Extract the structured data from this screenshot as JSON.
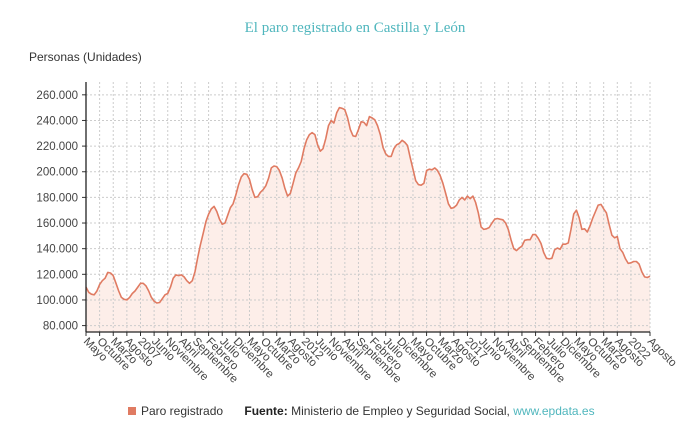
{
  "chart_data": {
    "type": "area",
    "title": "El paro registrado en Castilla y León",
    "ylabel": "Personas (Unidades)",
    "xlabel": "",
    "ylim": [
      75000,
      270000
    ],
    "y_ticks": [
      80000,
      100000,
      120000,
      140000,
      160000,
      180000,
      200000,
      220000,
      240000,
      260000
    ],
    "y_tick_labels": [
      "80.000",
      "100.000",
      "120.000",
      "140.000",
      "160.000",
      "180.000",
      "200.000",
      "220.000",
      "240.000",
      "260.000"
    ],
    "x_tick_labels": [
      "Mayo",
      "Octubre",
      "Marzo",
      "Agosto",
      "2007",
      "Junio",
      "Noviembre",
      "Abril",
      "Septiembre",
      "Febrero",
      "Julio",
      "Diciembre",
      "Mayo",
      "Octubre",
      "Marzo",
      "Agosto",
      "2012",
      "Junio",
      "Noviembre",
      "Abril",
      "Septiembre",
      "Febrero",
      "Julio",
      "Diciembre",
      "Mayo",
      "Octubre",
      "Marzo",
      "Agosto",
      "2017",
      "Junio",
      "Noviembre",
      "Abril",
      "Septiembre",
      "Febrero",
      "Julio",
      "Diciembre",
      "Mayo",
      "Octubre",
      "Marzo",
      "Agosto",
      "2022",
      "Agosto"
    ],
    "grid": true,
    "legend_position": "bottom",
    "series": [
      {
        "name": "Paro registrado",
        "color": "#e07b62",
        "fill": "#fdeee9",
        "values": [
          110000,
          106000,
          104500,
          104000,
          107000,
          112000,
          115000,
          117000,
          121500,
          121000,
          119000,
          113000,
          107000,
          102000,
          100500,
          100000,
          102000,
          105000,
          107000,
          110000,
          113000,
          113000,
          111000,
          107000,
          102000,
          99000,
          97600,
          98000,
          101000,
          104000,
          105000,
          110000,
          117000,
          119500,
          119000,
          119500,
          118000,
          115000,
          113000,
          115000,
          122000,
          133000,
          143000,
          152000,
          161000,
          167000,
          171000,
          173000,
          169000,
          163000,
          159000,
          160000,
          166000,
          172000,
          175000,
          182000,
          190000,
          196000,
          198500,
          198000,
          194000,
          186000,
          180000,
          180500,
          184000,
          186000,
          189000,
          195000,
          203000,
          204500,
          204000,
          201000,
          195000,
          187000,
          181000,
          183000,
          191000,
          199000,
          203000,
          208000,
          218000,
          225000,
          229000,
          230500,
          229000,
          221000,
          216000,
          218000,
          226000,
          236000,
          240000,
          238000,
          246000,
          250000,
          249500,
          248500,
          242000,
          233000,
          228000,
          227500,
          233000,
          239000,
          238500,
          236000,
          243000,
          242000,
          240500,
          236000,
          229000,
          219000,
          214000,
          212000,
          212000,
          218000,
          221000,
          222000,
          224500,
          223000,
          220500,
          211000,
          202000,
          193000,
          190000,
          189500,
          191000,
          201000,
          202000,
          201500,
          203000,
          201000,
          197000,
          191000,
          183000,
          175000,
          171500,
          172000,
          174000,
          178000,
          180000,
          178000,
          181000,
          179000,
          181000,
          176000,
          168000,
          157000,
          155000,
          155500,
          156500,
          160000,
          163000,
          163500,
          163000,
          162500,
          160000,
          155000,
          147000,
          140000,
          138500,
          140500,
          142000,
          146500,
          147000,
          147000,
          151000,
          151000,
          148000,
          144000,
          137000,
          132500,
          132000,
          132500,
          139000,
          140500,
          139500,
          143500,
          143500,
          144500,
          155000,
          167000,
          170000,
          164000,
          155000,
          155500,
          153000,
          158000,
          164000,
          169000,
          174000,
          174500,
          171000,
          168000,
          159000,
          150500,
          148500,
          149500,
          140000,
          137000,
          132000,
          128500,
          129000,
          130000,
          130000,
          128000,
          122000,
          118000,
          117500,
          118500
        ]
      }
    ]
  },
  "legend": {
    "series_label": "Paro registrado",
    "source_label": "Fuente:",
    "source_text": "Ministerio de Empleo y Seguridad Social,",
    "source_link": "www.epdata.es"
  }
}
